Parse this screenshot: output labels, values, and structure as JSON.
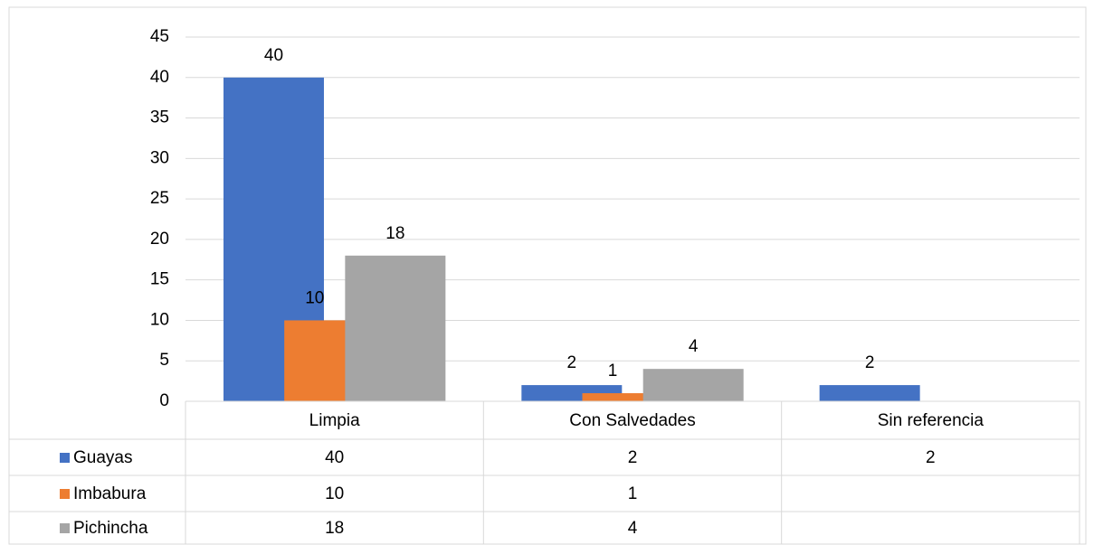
{
  "chart_data": {
    "type": "bar",
    "categories": [
      "Limpia",
      "Con Salvedades",
      "Sin referencia"
    ],
    "series": [
      {
        "name": "Guayas",
        "color": "#4472c4",
        "values": [
          40,
          2,
          2
        ]
      },
      {
        "name": "Imbabura",
        "color": "#ed7d31",
        "values": [
          10,
          1,
          null
        ]
      },
      {
        "name": "Pichincha",
        "color": "#a5a5a5",
        "values": [
          18,
          4,
          null
        ]
      }
    ],
    "ylim": [
      0,
      45
    ],
    "yticks": [
      0,
      5,
      10,
      15,
      20,
      25,
      30,
      35,
      40,
      45
    ],
    "grid": true,
    "data_table": true
  }
}
